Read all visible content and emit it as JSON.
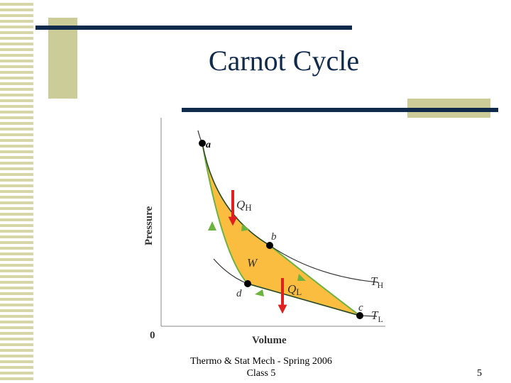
{
  "slide": {
    "title": "Carnot Cycle",
    "footer_line1": "Thermo & Stat Mech - Spring 2006",
    "footer_line2": "Class 5",
    "page_number": "5"
  },
  "diagram": {
    "y_axis_label": "Pressure",
    "x_axis_label": "Volume",
    "origin_label": "0",
    "points": [
      "a",
      "b",
      "c",
      "d"
    ],
    "heat_in": {
      "symbol": "Q",
      "subscript": "H"
    },
    "heat_out": {
      "symbol": "Q",
      "subscript": "L"
    },
    "work_label": "W",
    "isotherm_high": {
      "symbol": "T",
      "subscript": "H"
    },
    "isotherm_low": {
      "symbol": "T",
      "subscript": "L"
    }
  },
  "colors": {
    "title_text": "#0f2a4a",
    "rule": "#0f2a4a",
    "cycle_fill": "#fbbd3f",
    "cycle_edge": "#6db33f",
    "heat_arrow": "#e02020",
    "accent_tan": "#cccc99"
  }
}
